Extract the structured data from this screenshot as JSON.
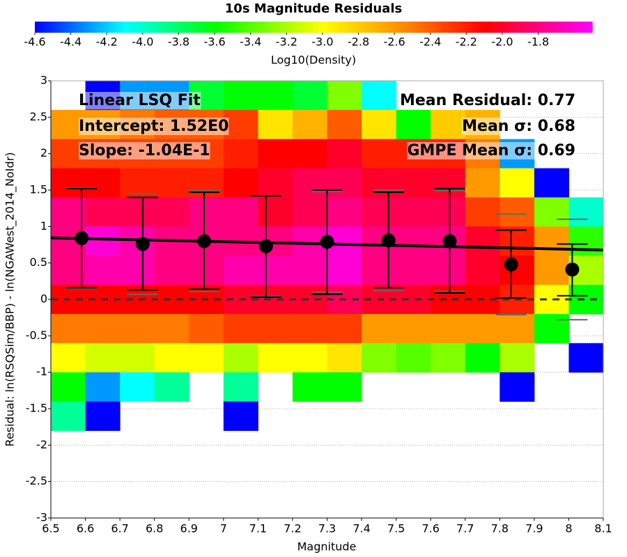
{
  "chart_data": {
    "type": "heatmap",
    "title": "10s Magnitude Residuals",
    "colorbar_label": "Log10(Density)",
    "clim": [
      -4.6,
      -1.5
    ],
    "cticks": [
      -4.6,
      -4.4,
      -4.2,
      {
        "value": -4,
        "label": "-4.0"
      },
      -3.8,
      -3.6,
      -3.4,
      -3.2,
      {
        "value": -3,
        "label": "-3.0"
      },
      -2.8,
      -2.6,
      -2.4,
      -2.2,
      {
        "value": -2,
        "label": "-2.0"
      },
      -1.8
    ],
    "colormap": [
      {
        "value": -4.6,
        "color": "#0000ff"
      },
      {
        "value": -4.1,
        "color": "#00ffff"
      },
      {
        "value": -3.6,
        "color": "#00ff00"
      },
      {
        "value": -3.0,
        "color": "#ffff00"
      },
      {
        "value": -2.6,
        "color": "#ff9900"
      },
      {
        "value": -2.1,
        "color": "#ff0000"
      },
      {
        "value": -1.5,
        "color": "#ff00ff"
      }
    ],
    "x_label": "Magnitude",
    "y_label": "Residual: ln(RSQSim/BBP) - ln(NGAWest_2014_NoIdr)",
    "xlim": [
      6.5,
      8.1
    ],
    "ylim": [
      -3,
      3
    ],
    "xticks": [
      6.5,
      6.6,
      6.7,
      6.8,
      6.9,
      7,
      7.1,
      7.2,
      7.3,
      7.4,
      7.5,
      7.6,
      7.7,
      7.8,
      7.9,
      8,
      8.1
    ],
    "yticks": [
      -3,
      -2.5,
      -2,
      -1.5,
      -1,
      -0.5,
      0,
      0.5,
      1,
      1.5,
      2,
      2.5,
      3
    ],
    "grid": true,
    "xbins": [
      6.5,
      6.6,
      6.7,
      6.8,
      6.9,
      7.0,
      7.1,
      7.2,
      7.3,
      7.4,
      7.5,
      7.6,
      7.7,
      7.8,
      7.9,
      8.0,
      8.1
    ],
    "ybins": [
      3.0,
      2.6,
      2.2,
      1.8,
      1.4,
      1.0,
      0.6,
      0.2,
      -0.2,
      -0.6,
      -1.0,
      -1.4,
      -1.8
    ],
    "z": [
      [
        null,
        -4.6,
        -4.3,
        -4.3,
        -3.7,
        -3.6,
        -3.6,
        -3.7,
        -3.3,
        -4.1,
        null,
        null,
        null,
        null,
        null,
        null
      ],
      [
        -2.6,
        -2.6,
        -2.5,
        -2.4,
        -2.4,
        -2.3,
        -2.9,
        -2.7,
        -2.4,
        -2.9,
        -3.6,
        -2.8,
        -2.7,
        null,
        null,
        null
      ],
      [
        -2.3,
        -2.3,
        -2.3,
        -2.3,
        -2.3,
        -2.2,
        -2.1,
        -2.1,
        -2.0,
        -2.2,
        -2.2,
        -2.2,
        -2.5,
        -4.3,
        null,
        null
      ],
      [
        -2.1,
        -2.1,
        -2.2,
        -2.2,
        -2.2,
        -2.1,
        -2.0,
        -1.9,
        -1.9,
        -2.0,
        -2.0,
        -2.0,
        -2.6,
        -3.0,
        -4.6,
        null
      ],
      [
        -1.8,
        -1.9,
        -1.9,
        -1.9,
        -1.8,
        -1.8,
        -2.0,
        -1.9,
        -1.8,
        -1.9,
        -1.9,
        -1.9,
        -2.3,
        -2.4,
        -3.3,
        -4.0
      ],
      [
        -1.8,
        -1.6,
        -1.7,
        -1.8,
        -1.8,
        -1.8,
        -1.8,
        -1.7,
        -1.6,
        -1.8,
        -1.8,
        -1.8,
        -2.0,
        -2.2,
        -2.6,
        -3.5
      ],
      [
        -1.8,
        -1.7,
        -1.7,
        -1.8,
        -1.8,
        -1.7,
        -1.7,
        -1.7,
        -1.6,
        -1.8,
        -1.8,
        -1.8,
        -2.0,
        -2.1,
        -2.6,
        -3.2
      ],
      [
        -2.1,
        -2.1,
        -2.1,
        -2.1,
        -2.1,
        -2.0,
        -2.0,
        -2.0,
        -1.9,
        -2.0,
        -2.0,
        -2.1,
        -2.1,
        -2.2,
        -3.0,
        -3.6
      ],
      [
        -2.5,
        -2.5,
        -2.5,
        -2.5,
        -2.4,
        -2.3,
        -2.3,
        -2.3,
        -2.3,
        -2.6,
        -2.6,
        -2.6,
        -2.6,
        -2.6,
        -3.6,
        null
      ],
      [
        -3.0,
        -3.1,
        -3.1,
        -3.0,
        -3.0,
        -3.2,
        -3.0,
        -3.0,
        -2.9,
        -3.3,
        -3.4,
        -3.3,
        -3.6,
        -3.2,
        null,
        -4.6
      ],
      [
        -3.6,
        -4.3,
        -4.1,
        -3.9,
        null,
        -3.9,
        null,
        -3.6,
        -3.6,
        null,
        null,
        null,
        null,
        -4.6,
        null,
        null
      ],
      [
        -3.9,
        -4.6,
        null,
        null,
        null,
        -4.6,
        null,
        null,
        null,
        null,
        null,
        null,
        null,
        null,
        null,
        null
      ]
    ],
    "points": {
      "x": [
        6.589,
        6.766,
        6.944,
        7.123,
        7.3,
        7.478,
        7.655,
        7.833,
        8.01
      ],
      "y": [
        0.84,
        0.76,
        0.8,
        0.73,
        0.79,
        0.81,
        0.8,
        0.48,
        0.41
      ],
      "err_low": [
        0.16,
        0.13,
        0.14,
        0.03,
        0.07,
        0.16,
        0.09,
        0.02,
        0.05
      ],
      "err_high": [
        1.52,
        1.4,
        1.47,
        1.42,
        1.5,
        1.47,
        1.52,
        0.95,
        0.76
      ],
      "gmpe_low": [
        0.15,
        0.07,
        0.11,
        0.04,
        0.1,
        0.12,
        0.11,
        -0.21,
        -0.28
      ],
      "gmpe_high": [
        1.53,
        1.45,
        1.49,
        1.42,
        1.48,
        1.5,
        1.49,
        1.17,
        1.1
      ]
    },
    "fit": {
      "intercept": 1.52,
      "slope": -0.104
    },
    "reference_y": 0,
    "annotations_left": [
      "Linear LSQ Fit",
      "Intercept: 1.52E0",
      "Slope: -1.04E-1"
    ],
    "annotations_right": [
      "Mean Residual: 0.77",
      "Mean σ: 0.68",
      "GMPE Mean σ: 0.69"
    ]
  }
}
